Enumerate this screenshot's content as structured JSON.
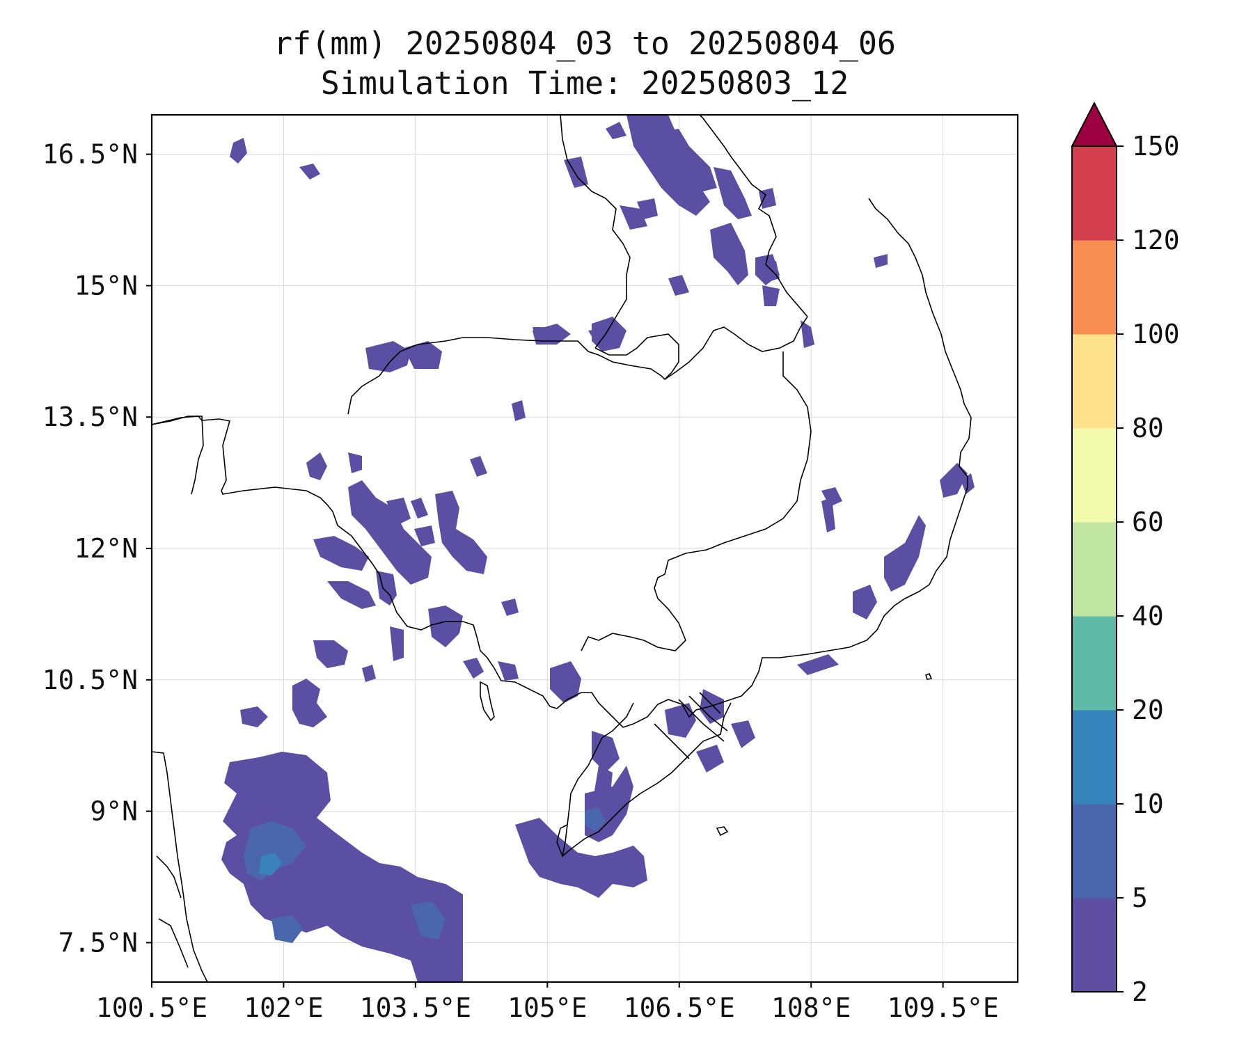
{
  "title": {
    "line1": "rf(mm) 20250804_03 to 20250804_06",
    "line2": "Simulation Time: 20250803_12"
  },
  "lon_ticks": [
    "100.5°E",
    "102°E",
    "103.5°E",
    "105°E",
    "106.5°E",
    "108°E",
    "109.5°E"
  ],
  "lat_ticks": [
    "16.5°N",
    "15°N",
    "13.5°N",
    "12°N",
    "10.5°N",
    "9°N",
    "7.5°N"
  ],
  "colorbar": {
    "levels": [
      "2",
      "5",
      "10",
      "20",
      "40",
      "60",
      "80",
      "100",
      "120",
      "150"
    ],
    "colors": [
      "#5e4fa2",
      "#4a67ad",
      "#3682ba",
      "#5fbaa8",
      "#bfe5a0",
      "#f2faac",
      "#fde18b",
      "#f98e52",
      "#d4404e",
      "#9e0142"
    ],
    "extend": "max"
  },
  "map": {
    "lon_range": [
      100.5,
      110.35
    ],
    "lat_range": [
      7.05,
      16.95
    ],
    "variable": "rainfall (mm)",
    "gridlines": true
  }
}
